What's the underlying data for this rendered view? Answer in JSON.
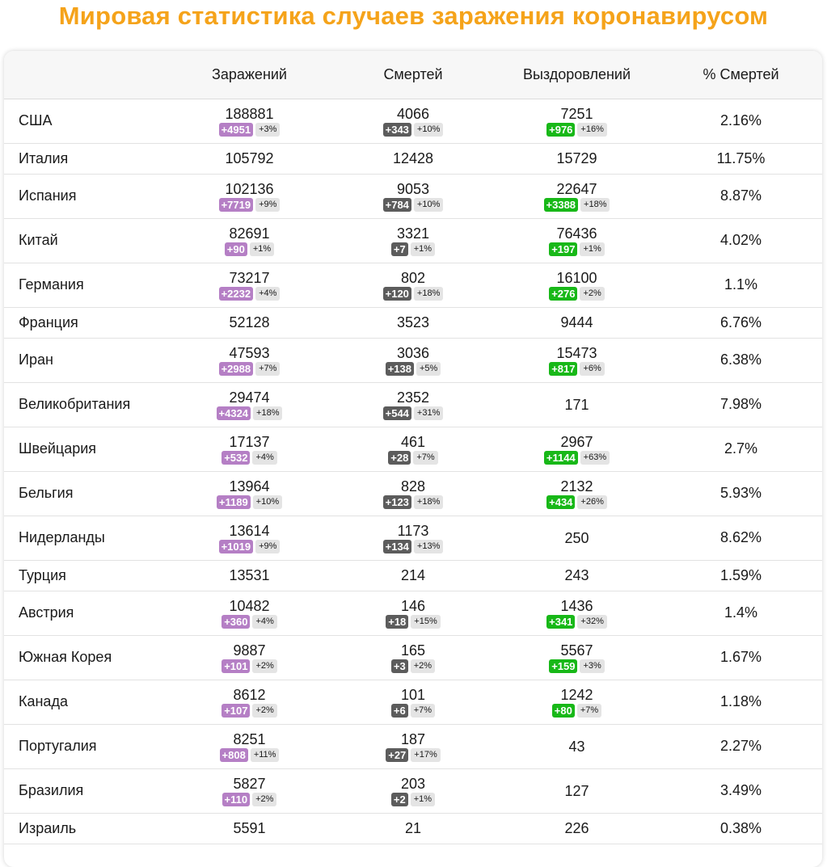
{
  "title": "Мировая статистика случаев заражения коронавирусом",
  "colors": {
    "title": "#f5a31a",
    "infected_badge": "#b57fc5",
    "deaths_badge": "#5c5c5c",
    "recovered_badge": "#18b818"
  },
  "headers": [
    "",
    "Заражений",
    "Смертей",
    "Выздоровлений",
    "% Смертей"
  ],
  "rows": [
    {
      "country": "США",
      "cases": "188881",
      "cases_new": "+4951",
      "cases_pct": "+3%",
      "deaths": "4066",
      "deaths_new": "+343",
      "deaths_pct": "+10%",
      "recovered": "7251",
      "recovered_new": "+976",
      "recovered_pct": "+16%",
      "mortality": "2.16%"
    },
    {
      "country": "Италия",
      "cases": "105792",
      "cases_new": "",
      "cases_pct": "",
      "deaths": "12428",
      "deaths_new": "",
      "deaths_pct": "",
      "recovered": "15729",
      "recovered_new": "",
      "recovered_pct": "",
      "mortality": "11.75%"
    },
    {
      "country": "Испания",
      "cases": "102136",
      "cases_new": "+7719",
      "cases_pct": "+9%",
      "deaths": "9053",
      "deaths_new": "+784",
      "deaths_pct": "+10%",
      "recovered": "22647",
      "recovered_new": "+3388",
      "recovered_pct": "+18%",
      "mortality": "8.87%"
    },
    {
      "country": "Китай",
      "cases": "82691",
      "cases_new": "+90",
      "cases_pct": "+1%",
      "deaths": "3321",
      "deaths_new": "+7",
      "deaths_pct": "+1%",
      "recovered": "76436",
      "recovered_new": "+197",
      "recovered_pct": "+1%",
      "mortality": "4.02%"
    },
    {
      "country": "Германия",
      "cases": "73217",
      "cases_new": "+2232",
      "cases_pct": "+4%",
      "deaths": "802",
      "deaths_new": "+120",
      "deaths_pct": "+18%",
      "recovered": "16100",
      "recovered_new": "+276",
      "recovered_pct": "+2%",
      "mortality": "1.1%"
    },
    {
      "country": "Франция",
      "cases": "52128",
      "cases_new": "",
      "cases_pct": "",
      "deaths": "3523",
      "deaths_new": "",
      "deaths_pct": "",
      "recovered": "9444",
      "recovered_new": "",
      "recovered_pct": "",
      "mortality": "6.76%"
    },
    {
      "country": "Иран",
      "cases": "47593",
      "cases_new": "+2988",
      "cases_pct": "+7%",
      "deaths": "3036",
      "deaths_new": "+138",
      "deaths_pct": "+5%",
      "recovered": "15473",
      "recovered_new": "+817",
      "recovered_pct": "+6%",
      "mortality": "6.38%"
    },
    {
      "country": "Великобритания",
      "cases": "29474",
      "cases_new": "+4324",
      "cases_pct": "+18%",
      "deaths": "2352",
      "deaths_new": "+544",
      "deaths_pct": "+31%",
      "recovered": "171",
      "recovered_new": "",
      "recovered_pct": "",
      "mortality": "7.98%"
    },
    {
      "country": "Швейцария",
      "cases": "17137",
      "cases_new": "+532",
      "cases_pct": "+4%",
      "deaths": "461",
      "deaths_new": "+28",
      "deaths_pct": "+7%",
      "recovered": "2967",
      "recovered_new": "+1144",
      "recovered_pct": "+63%",
      "mortality": "2.7%"
    },
    {
      "country": "Бельгия",
      "cases": "13964",
      "cases_new": "+1189",
      "cases_pct": "+10%",
      "deaths": "828",
      "deaths_new": "+123",
      "deaths_pct": "+18%",
      "recovered": "2132",
      "recovered_new": "+434",
      "recovered_pct": "+26%",
      "mortality": "5.93%"
    },
    {
      "country": "Нидерланды",
      "cases": "13614",
      "cases_new": "+1019",
      "cases_pct": "+9%",
      "deaths": "1173",
      "deaths_new": "+134",
      "deaths_pct": "+13%",
      "recovered": "250",
      "recovered_new": "",
      "recovered_pct": "",
      "mortality": "8.62%"
    },
    {
      "country": "Турция",
      "cases": "13531",
      "cases_new": "",
      "cases_pct": "",
      "deaths": "214",
      "deaths_new": "",
      "deaths_pct": "",
      "recovered": "243",
      "recovered_new": "",
      "recovered_pct": "",
      "mortality": "1.59%"
    },
    {
      "country": "Австрия",
      "cases": "10482",
      "cases_new": "+360",
      "cases_pct": "+4%",
      "deaths": "146",
      "deaths_new": "+18",
      "deaths_pct": "+15%",
      "recovered": "1436",
      "recovered_new": "+341",
      "recovered_pct": "+32%",
      "mortality": "1.4%"
    },
    {
      "country": "Южная Корея",
      "cases": "9887",
      "cases_new": "+101",
      "cases_pct": "+2%",
      "deaths": "165",
      "deaths_new": "+3",
      "deaths_pct": "+2%",
      "recovered": "5567",
      "recovered_new": "+159",
      "recovered_pct": "+3%",
      "mortality": "1.67%"
    },
    {
      "country": "Канада",
      "cases": "8612",
      "cases_new": "+107",
      "cases_pct": "+2%",
      "deaths": "101",
      "deaths_new": "+6",
      "deaths_pct": "+7%",
      "recovered": "1242",
      "recovered_new": "+80",
      "recovered_pct": "+7%",
      "mortality": "1.18%"
    },
    {
      "country": "Португалия",
      "cases": "8251",
      "cases_new": "+808",
      "cases_pct": "+11%",
      "deaths": "187",
      "deaths_new": "+27",
      "deaths_pct": "+17%",
      "recovered": "43",
      "recovered_new": "",
      "recovered_pct": "",
      "mortality": "2.27%"
    },
    {
      "country": "Бразилия",
      "cases": "5827",
      "cases_new": "+110",
      "cases_pct": "+2%",
      "deaths": "203",
      "deaths_new": "+2",
      "deaths_pct": "+1%",
      "recovered": "127",
      "recovered_new": "",
      "recovered_pct": "",
      "mortality": "3.49%"
    },
    {
      "country": "Израиль",
      "cases": "5591",
      "cases_new": "",
      "cases_pct": "",
      "deaths": "21",
      "deaths_new": "",
      "deaths_pct": "",
      "recovered": "226",
      "recovered_new": "",
      "recovered_pct": "",
      "mortality": "0.38%"
    }
  ]
}
